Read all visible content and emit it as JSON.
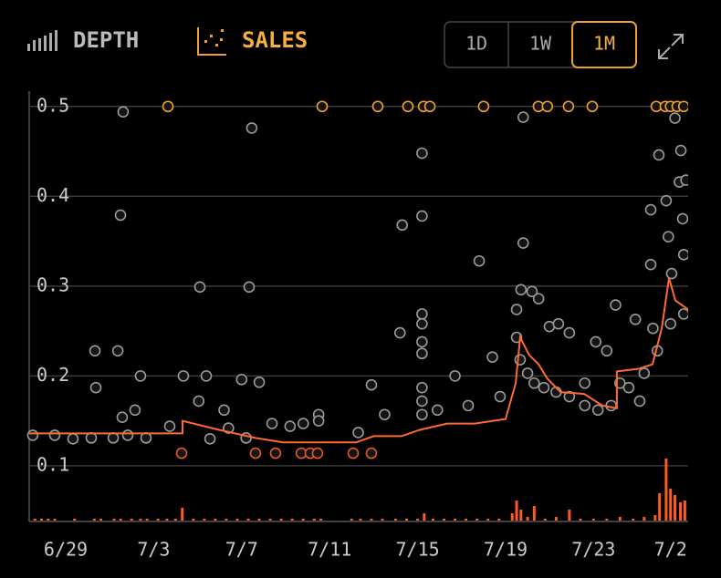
{
  "toolbar": {
    "tabs": [
      "DEPTH",
      "SALES"
    ],
    "ranges": [
      "1D",
      "1W",
      "1M"
    ]
  },
  "chart_data": {
    "type": "scatter",
    "xlim": [
      -1.66,
      28.3
    ],
    "ylim": [
      0.038,
      0.517
    ],
    "y2lim": [
      0,
      70
    ],
    "grid": true,
    "xticks": [
      {
        "value": 0,
        "label": "6/29"
      },
      {
        "value": 4,
        "label": "7/3"
      },
      {
        "value": 8,
        "label": "7/7"
      },
      {
        "value": 12,
        "label": "7/11"
      },
      {
        "value": 16,
        "label": "7/15"
      },
      {
        "value": 20,
        "label": "7/19"
      },
      {
        "value": 24,
        "label": "7/23"
      },
      {
        "value": 27.5,
        "label": "7/2"
      }
    ],
    "yticks": [
      0.1,
      0.2,
      0.3,
      0.4,
      0.5
    ],
    "series": [
      {
        "kind": "bar",
        "axis": "y2",
        "color": "#ff5a1f",
        "x": [
          -1.4,
          -1.1,
          -0.8,
          -0.5,
          0.4,
          1.3,
          1.6,
          2.2,
          2.5,
          3.0,
          3.4,
          3.7,
          4.2,
          4.6,
          5.0,
          5.3,
          5.8,
          6.3,
          6.8,
          7.3,
          7.8,
          8.3,
          8.8,
          9.3,
          9.8,
          10.3,
          10.8,
          11.3,
          11.6,
          13.0,
          13.4,
          13.9,
          14.4,
          15.0,
          15.5,
          16.0,
          16.3,
          16.7,
          17.2,
          17.7,
          18.2,
          18.7,
          19.2,
          19.7,
          20.3,
          20.5,
          20.7,
          21.0,
          21.3,
          21.8,
          22.3,
          22.9,
          23.4,
          24.0,
          24.6,
          25.2,
          25.8,
          26.3,
          26.8,
          27.0,
          27.3,
          27.5,
          27.7,
          27.95,
          28.15
        ],
        "values": [
          2,
          2,
          2,
          2,
          2,
          2,
          2,
          2,
          2,
          2,
          2,
          2,
          2,
          2,
          2,
          14,
          2,
          2,
          2,
          2,
          2,
          2,
          2,
          2,
          2,
          2,
          2,
          2,
          2,
          2,
          2,
          2,
          2,
          2,
          2,
          2,
          8,
          2,
          2,
          2,
          2,
          2,
          2,
          2,
          8,
          22,
          12,
          4,
          16,
          2,
          4,
          12,
          2,
          2,
          2,
          4,
          2,
          4,
          6,
          30,
          68,
          35,
          28,
          20,
          22
        ]
      },
      {
        "kind": "scatter",
        "color": "#9a9a9a",
        "x": [
          2.61,
          8.46,
          2.49,
          6.1,
          8.34,
          1.33,
          2.37,
          1.37,
          3.4,
          5.35,
          6.39,
          8.0,
          8.8,
          2.57,
          3.15,
          6.05,
          7.2,
          -1.5,
          -0.5,
          0.33,
          1.16,
          2.16,
          2.82,
          3.65,
          4.73,
          6.56,
          7.4,
          8.2,
          9.38,
          10.2,
          10.8,
          11.5,
          11.5,
          13.3,
          13.9,
          14.5,
          15.3,
          15.2,
          16.2,
          16.2,
          16.2,
          16.2,
          16.2,
          16.2,
          16.2,
          16.2,
          16.2,
          16.9,
          17.7,
          18.3,
          18.8,
          19.4,
          19.75,
          20.5,
          20.7,
          20.8,
          20.8,
          21.2,
          21.5,
          21.99,
          22.4,
          22.9,
          23.6,
          24.1,
          24.6,
          25.0,
          25.2,
          25.9,
          26.1,
          26.6,
          26.6,
          26.7,
          26.97,
          27.3,
          27.4,
          27.55,
          27.7,
          27.9,
          27.97,
          28.05,
          28.1,
          28.1,
          28.2,
          20.5,
          20.66,
          21.0,
          21.3,
          21.74,
          22.3,
          22.9,
          23.6,
          24.2,
          24.8,
          25.6,
          26.3,
          26.9,
          27.5
        ],
        "values": [
          0.494,
          0.476,
          0.379,
          0.299,
          0.299,
          0.228,
          0.228,
          0.187,
          0.2,
          0.2,
          0.2,
          0.196,
          0.193,
          0.154,
          0.162,
          0.172,
          0.162,
          0.134,
          0.134,
          0.13,
          0.131,
          0.131,
          0.134,
          0.131,
          0.144,
          0.13,
          0.142,
          0.131,
          0.147,
          0.144,
          0.147,
          0.157,
          0.15,
          0.137,
          0.19,
          0.157,
          0.368,
          0.248,
          0.448,
          0.378,
          0.269,
          0.258,
          0.238,
          0.225,
          0.187,
          0.172,
          0.157,
          0.162,
          0.2,
          0.167,
          0.328,
          0.221,
          0.177,
          0.274,
          0.296,
          0.348,
          0.488,
          0.294,
          0.286,
          0.255,
          0.258,
          0.248,
          0.192,
          0.238,
          0.228,
          0.279,
          0.192,
          0.263,
          0.172,
          0.385,
          0.324,
          0.253,
          0.446,
          0.395,
          0.355,
          0.314,
          0.487,
          0.416,
          0.451,
          0.375,
          0.335,
          0.269,
          0.418,
          0.243,
          0.218,
          0.203,
          0.192,
          0.187,
          0.182,
          0.177,
          0.167,
          0.162,
          0.167,
          0.187,
          0.203,
          0.228,
          0.258
        ]
      },
      {
        "kind": "scatter",
        "color": "#f0a030",
        "x": [
          4.65,
          11.66,
          14.19,
          15.56,
          16.27,
          16.56,
          19.0,
          21.49,
          21.9,
          22.86,
          23.94,
          26.85,
          27.26,
          27.5,
          27.8,
          28.1
        ],
        "values": [
          0.5,
          0.5,
          0.5,
          0.5,
          0.5,
          0.5,
          0.5,
          0.5,
          0.5,
          0.5,
          0.5,
          0.5,
          0.5,
          0.5,
          0.5,
          0.5
        ]
      },
      {
        "kind": "scatter",
        "color": "#e8552a",
        "x": [
          5.27,
          8.63,
          9.54,
          10.71,
          11.12,
          11.45,
          13.07,
          13.9
        ],
        "values": [
          0.114,
          0.114,
          0.114,
          0.114,
          0.114,
          0.114,
          0.114,
          0.114
        ]
      },
      {
        "kind": "line",
        "color": "#ff6a33",
        "x": [
          -1.66,
          5.31,
          5.31,
          6.97,
          8.63,
          9.88,
          13.2,
          14.0,
          15.27,
          16.1,
          17.34,
          18.6,
          20.0,
          20.46,
          20.66,
          21.08,
          21.5,
          21.9,
          22.5,
          23.57,
          24.4,
          25.06,
          25.06,
          26.06,
          26.68,
          27.1,
          27.43,
          27.72,
          28.3
        ],
        "values": [
          0.136,
          0.136,
          0.15,
          0.14,
          0.131,
          0.126,
          0.126,
          0.133,
          0.133,
          0.14,
          0.147,
          0.147,
          0.152,
          0.192,
          0.243,
          0.223,
          0.213,
          0.197,
          0.182,
          0.18,
          0.167,
          0.164,
          0.205,
          0.208,
          0.213,
          0.253,
          0.309,
          0.284,
          0.274
        ]
      }
    ]
  }
}
